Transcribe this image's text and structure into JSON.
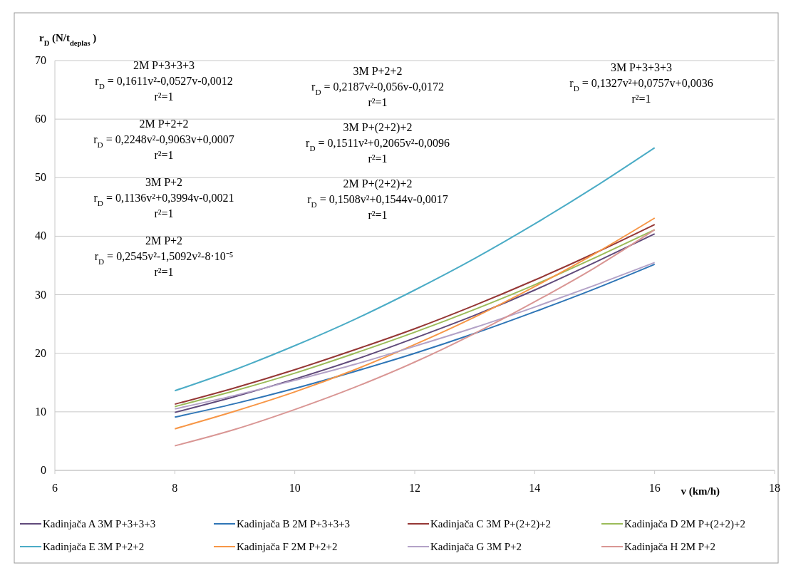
{
  "chart_data": {
    "type": "line",
    "xlabel": "v (km/h)",
    "ylabel": "r$_{D}$ (N/t$_{deplas}$)",
    "x": [
      8,
      9,
      10,
      11,
      12,
      13,
      14,
      15,
      16
    ],
    "xlim": [
      6,
      18
    ],
    "xticks": [
      6,
      8,
      10,
      12,
      14,
      16,
      18
    ],
    "ylim": [
      0,
      70
    ],
    "yticks": [
      0,
      10,
      20,
      30,
      40,
      50,
      60,
      70
    ],
    "grid": "y",
    "legend": "bottom",
    "series": [
      {
        "name": "Kadinjača A 3M P+3+3+3",
        "color": "#604a7b",
        "values": [
          9.9,
          12.6,
          15.6,
          18.9,
          22.6,
          26.5,
          30.8,
          35.5,
          40.4
        ]
      },
      {
        "name": "Kadinjača B 2M P+3+3+3",
        "color": "#2e75b6",
        "values": [
          9.1,
          11.4,
          14.0,
          16.9,
          20.0,
          23.4,
          27.1,
          31.0,
          35.2
        ]
      },
      {
        "name": "Kadinjača C 3M P+(2+2)+2",
        "color": "#953735",
        "values": [
          11.3,
          14.1,
          17.2,
          20.6,
          24.2,
          28.2,
          32.5,
          37.1,
          42.0
        ]
      },
      {
        "name": "Kadinjača D 2M P+(2+2)+2",
        "color": "#9bbb59",
        "values": [
          10.9,
          13.6,
          16.6,
          20.0,
          23.6,
          27.5,
          31.7,
          36.3,
          41.1
        ]
      },
      {
        "name": "Kadinjača E 3M P+2+2",
        "color": "#4bacc6",
        "values": [
          13.6,
          17.2,
          21.3,
          25.8,
          30.8,
          36.2,
          42.1,
          48.4,
          55.1
        ]
      },
      {
        "name": "Kadinjača F 2M P+2+2",
        "color": "#f79646",
        "values": [
          7.1,
          10.1,
          13.4,
          17.2,
          21.5,
          26.2,
          31.4,
          37.0,
          43.1
        ]
      },
      {
        "name": "Kadinjača G 3M P+2",
        "color": "#b3a2c7",
        "values": [
          10.5,
          12.8,
          15.4,
          18.1,
          21.2,
          24.4,
          27.9,
          31.6,
          35.5
        ]
      },
      {
        "name": "Kadinjača H 2M P+2",
        "color": "#d99694",
        "values": [
          4.2,
          7.0,
          10.4,
          14.2,
          18.5,
          23.4,
          28.8,
          34.6,
          41.1
        ]
      }
    ],
    "annotations": [
      "2M P+3+3+3\nr$_{D}$= 0,1611v²-0,0527v-0,0012\nr²=1",
      "2M P+2+2\nr$_{D}$= 0,2248v²-0,9063v+0,0007\nr²=1",
      "3M P+2\nr$_{D}$= 0,1136v²+0,3994v-0,0021\nr²=1",
      "2M P+2\nr$_{D}$= 0,2545v²-1,5092v²-8·10⁻⁵\nr²=1",
      "3M P+2+2\nr$_{D}$= 0,2187v²-0,056v-0,0172\nr²=1",
      "3M P+(2+2)+2\nr$_{D}$= 0,1511v²+0,2065v²-0,0096\nr²=1",
      "2M P+(2+2)+2\nr$_{D}$= 0,1508v²+0,1544v-0,0017\nr²=1",
      "3M P+3+3+3\nr$_{D}$= 0,1327v²+0,0757v+0,0036\nr²=1"
    ]
  }
}
